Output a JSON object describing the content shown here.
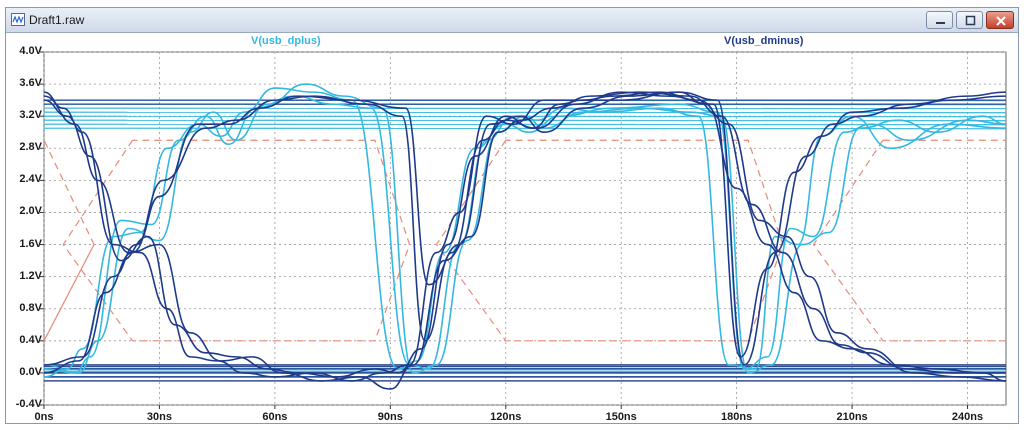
{
  "window": {
    "title": "Draft1.raw",
    "buttons": {
      "minimize": "minimize-icon",
      "maximize": "maximize-icon",
      "close": "close-icon"
    },
    "app_icon": "waveform-viewer-icon"
  },
  "colors": {
    "dplus": "#35b8e0",
    "dminus": "#1f3a8a",
    "mask": "#e88a7a",
    "grid": "#9a9a9a",
    "axis_text": "#1a1a1a"
  },
  "chart_data": {
    "type": "line",
    "title": "",
    "xlabel": "",
    "ylabel": "",
    "xlim": [
      0,
      250
    ],
    "ylim": [
      -0.4,
      4.0
    ],
    "grid": true,
    "y_ticks": [
      "4.0V",
      "3.6V",
      "3.2V",
      "2.8V",
      "2.4V",
      "2.0V",
      "1.6V",
      "1.2V",
      "0.8V",
      "0.4V",
      "0.0V",
      "-0.4V"
    ],
    "y_tick_values": [
      4.0,
      3.6,
      3.2,
      2.8,
      2.4,
      2.0,
      1.6,
      1.2,
      0.8,
      0.4,
      0.0,
      -0.4
    ],
    "x_ticks": [
      "0ns",
      "30ns",
      "60ns",
      "90ns",
      "120ns",
      "150ns",
      "180ns",
      "210ns",
      "240ns"
    ],
    "x_tick_values": [
      0,
      30,
      60,
      90,
      120,
      150,
      180,
      210,
      240
    ],
    "series": [
      {
        "name": "V(usb_dplus)",
        "color": "#35b8e0",
        "traces": [
          {
            "x": [
              0,
              8,
              12,
              20,
              28,
              35,
              42,
              48,
              55,
              65,
              75,
              85,
              95,
              100,
              108,
              115,
              122,
              128,
              135,
              145,
              160,
              170,
              178,
              185,
              190,
              196,
              202,
              210,
              220,
              235,
              250
            ],
            "y": [
              0.05,
              0.0,
              0.2,
              1.9,
              1.85,
              2.9,
              3.2,
              2.85,
              3.3,
              3.45,
              3.35,
              3.3,
              0.1,
              0.05,
              1.6,
              2.9,
              3.2,
              3.15,
              3.3,
              3.25,
              3.3,
              3.2,
              0.1,
              0.05,
              1.7,
              1.6,
              2.95,
              3.2,
              2.8,
              3.1,
              3.05
            ]
          },
          {
            "x": [
              0,
              6,
              10,
              18,
              25,
              32,
              40,
              46,
              52,
              60,
              70,
              80,
              92,
              97,
              104,
              112,
              120,
              126,
              134,
              148,
              165,
              175,
              182,
              188,
              194,
              200,
              208,
              215,
              225,
              240,
              250
            ],
            "y": [
              -0.05,
              0.05,
              0.3,
              1.7,
              1.75,
              2.8,
              3.1,
              2.95,
              3.25,
              3.55,
              3.5,
              3.4,
              0.05,
              0.15,
              1.5,
              2.8,
              3.1,
              3.0,
              3.2,
              3.3,
              3.35,
              3.25,
              0.05,
              0.2,
              1.8,
              1.7,
              3.0,
              3.1,
              2.9,
              3.15,
              3.1
            ]
          },
          {
            "x": [
              0,
              9,
              14,
              22,
              30,
              38,
              44,
              50,
              58,
              68,
              78,
              88,
              96,
              102,
              110,
              118,
              125,
              130,
              140,
              155,
              168,
              176,
              183,
              189,
              197,
              204,
              212,
              222,
              232,
              244,
              250
            ],
            "y": [
              0.1,
              0.0,
              0.4,
              1.8,
              1.65,
              3.0,
              3.25,
              2.9,
              3.35,
              3.6,
              3.45,
              3.3,
              0.0,
              0.1,
              1.65,
              3.0,
              3.2,
              3.05,
              3.25,
              3.3,
              3.25,
              3.2,
              0.0,
              0.1,
              1.6,
              1.75,
              3.05,
              3.15,
              3.0,
              3.2,
              3.1
            ]
          }
        ],
        "flat_high": [
          3.05,
          3.1,
          3.15,
          3.2,
          3.25,
          3.3,
          3.35,
          3.4
        ],
        "flat_low": [
          -0.05,
          0.0,
          0.02,
          0.05
        ]
      },
      {
        "name": "V(usb_dminus)",
        "color": "#1f3a8a",
        "traces": [
          {
            "x": [
              0,
              5,
              10,
              18,
              25,
              32,
              38,
              45,
              52,
              60,
              70,
              80,
              88,
              95,
              102,
              108,
              115,
              122,
              130,
              138,
              150,
              165,
              172,
              180,
              188,
              195,
              202,
              210,
              220,
              232,
              244,
              250
            ],
            "y": [
              3.5,
              3.3,
              3.0,
              1.6,
              1.5,
              0.8,
              0.2,
              0.15,
              0.0,
              -0.05,
              0.0,
              -0.1,
              0.0,
              0.1,
              1.5,
              2.0,
              3.2,
              3.1,
              3.4,
              3.4,
              3.4,
              3.5,
              3.35,
              2.3,
              1.6,
              1.0,
              0.4,
              0.3,
              0.1,
              0.05,
              0.0,
              -0.1
            ]
          },
          {
            "x": [
              0,
              6,
              12,
              20,
              27,
              34,
              42,
              50,
              58,
              66,
              76,
              86,
              92,
              98,
              105,
              112,
              120,
              127,
              134,
              142,
              155,
              168,
              176,
              184,
              192,
              200,
              207,
              214,
              224,
              236,
              250
            ],
            "y": [
              3.4,
              3.2,
              2.7,
              1.4,
              1.7,
              0.6,
              0.25,
              0.2,
              0.05,
              0.0,
              -0.05,
              0.05,
              0.0,
              0.3,
              1.6,
              2.7,
              3.2,
              3.05,
              3.35,
              3.45,
              3.5,
              3.45,
              3.2,
              2.1,
              1.5,
              0.8,
              0.35,
              0.25,
              0.05,
              0.0,
              0.0
            ]
          },
          {
            "x": [
              0,
              8,
              14,
              22,
              30,
              38,
              46,
              54,
              62,
              72,
              82,
              90,
              96,
              104,
              111,
              118,
              124,
              132,
              140,
              148,
              160,
              170,
              178,
              186,
              193,
              199,
              206,
              214,
              226,
              238,
              250
            ],
            "y": [
              3.45,
              3.1,
              2.4,
              1.5,
              1.6,
              0.5,
              0.15,
              0.2,
              0.0,
              -0.1,
              -0.05,
              -0.2,
              0.1,
              1.4,
              1.7,
              3.0,
              3.15,
              3.3,
              3.4,
              3.45,
              3.5,
              3.4,
              3.1,
              1.9,
              1.7,
              1.2,
              0.5,
              0.3,
              0.0,
              -0.05,
              -0.1
            ]
          },
          {
            "x": [
              0,
              10,
              18,
              24,
              30,
              40,
              48,
              56,
              66,
              80,
              94,
              100,
              108,
              116,
              124,
              130,
              140,
              152,
              165,
              175,
              182,
              190,
              198,
              205,
              212,
              225,
              240,
              250
            ],
            "y": [
              0.1,
              0.2,
              1.2,
              1.6,
              2.2,
              3.1,
              3.1,
              3.3,
              3.45,
              3.4,
              3.3,
              1.1,
              1.6,
              3.1,
              3.2,
              3.0,
              3.3,
              3.45,
              3.5,
              3.4,
              0.1,
              1.5,
              2.7,
              3.1,
              3.2,
              3.35,
              3.45,
              3.5
            ]
          },
          {
            "x": [
              0,
              9,
              16,
              23,
              31,
              42,
              50,
              60,
              70,
              84,
              93,
              99,
              106,
              114,
              120,
              128,
              138,
              150,
              162,
              174,
              181,
              188,
              195,
              202,
              210,
              222,
              236,
              250
            ],
            "y": [
              0.0,
              0.15,
              1.0,
              1.5,
              2.4,
              3.05,
              3.15,
              3.4,
              3.45,
              3.35,
              3.2,
              0.4,
              1.5,
              2.9,
              3.15,
              3.05,
              3.35,
              3.5,
              3.45,
              3.35,
              0.2,
              1.3,
              2.5,
              2.95,
              3.25,
              3.3,
              3.4,
              3.45
            ]
          }
        ],
        "flat_high": [
          3.35,
          3.4
        ],
        "flat_low": [
          -0.1,
          -0.05,
          0.0,
          0.05,
          0.08,
          0.1
        ]
      },
      {
        "name": "",
        "color": "#e88a7a",
        "style": "dashed",
        "shape": "eye-mask",
        "masks": [
          {
            "x": [
              0,
              13,
              0
            ],
            "y": [
              0.4,
              1.6,
              2.9
            ]
          },
          {
            "x": [
              13,
              0
            ],
            "y": [
              1.6,
              0.4
            ]
          },
          {
            "x": [
              23,
              5,
              23,
              86,
              95,
              86,
              23
            ],
            "y": [
              2.9,
              1.6,
              0.4,
              0.4,
              1.6,
              2.9,
              2.9
            ]
          },
          {
            "x": [
              120,
              102,
              120,
              183,
              192,
              183,
              120
            ],
            "y": [
              2.9,
              1.6,
              0.4,
              0.4,
              1.6,
              2.9,
              2.9
            ]
          },
          {
            "x": [
              218,
              200,
              218,
              250
            ],
            "y": [
              2.9,
              1.6,
              0.4,
              0.4
            ]
          },
          {
            "x": [
              218,
              250
            ],
            "y": [
              2.9,
              2.9
            ]
          }
        ]
      }
    ]
  }
}
